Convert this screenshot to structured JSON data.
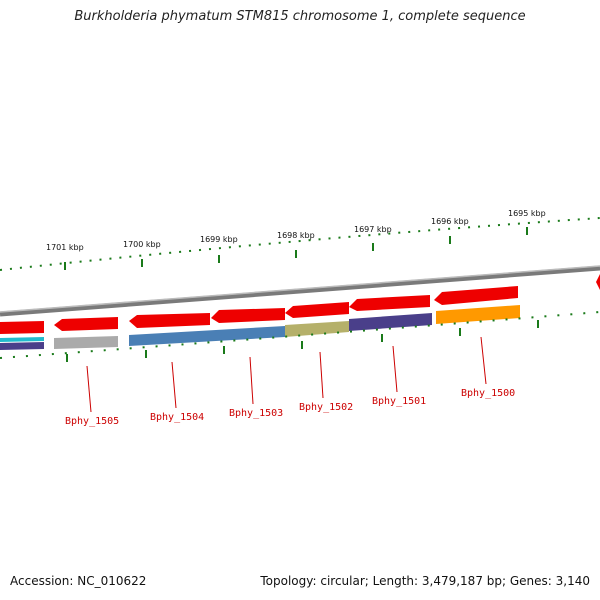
{
  "title": "Burkholderia phymatum STM815 chromosome 1, complete sequence",
  "footer": {
    "accession": "Accession: NC_010622",
    "stats": "Topology: circular; Length: 3,479,187 bp; Genes: 3,140"
  },
  "ticks": [
    "1701 kbp",
    "1700 kbp",
    "1699 kbp",
    "1698 kbp",
    "1697 kbp",
    "1696 kbp",
    "1695 kbp"
  ],
  "genes": [
    "Bphy_1505",
    "Bphy_1504",
    "Bphy_1503",
    "Bphy_1502",
    "Bphy_1501",
    "Bphy_1500"
  ],
  "colors": {
    "forward_arrow": "#ee0000",
    "backbone": "#888888",
    "tick_mark": "#1a7a1a",
    "gene_label": "#cc0000",
    "cog_gray": "#aaaaaa",
    "cog_blue": "#4a7fb5",
    "cog_olive": "#b5b06a",
    "cog_purple": "#4a3f8a",
    "cog_orange": "#ff9900",
    "cog_cyan": "#22bbcc"
  }
}
